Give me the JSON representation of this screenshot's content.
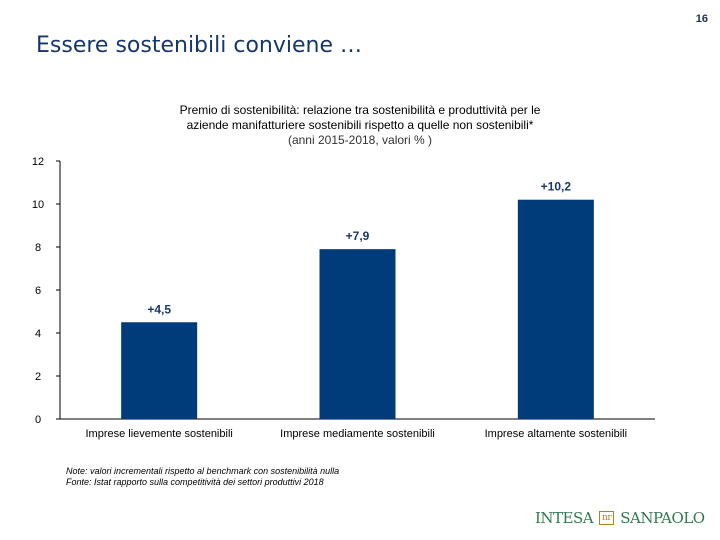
{
  "page": {
    "number": "16",
    "title": "Essere sostenibili conviene …"
  },
  "chart_title": {
    "line1": "Premio di sostenibilità: relazione tra sostenibilità e produttività  per le",
    "line2": "aziende manifatturiere sostenibili rispetto a  quelle non sostenibili*",
    "line3": "(anni 2015-2018, valori % )"
  },
  "chart_data": {
    "type": "bar",
    "title": "Premio di sostenibilità: relazione tra sostenibilità e produttività per le aziende manifatturiere sostenibili rispetto a quelle non sostenibili*",
    "subtitle": "(anni 2015-2018, valori % )",
    "categories": [
      "Imprese lievemente sostenibili",
      "Imprese mediamente sostenibili",
      "Imprese altamente sostenibili"
    ],
    "values": [
      4.5,
      7.9,
      10.2
    ],
    "data_labels": [
      "+4,5",
      "+7,9",
      "+10,2"
    ],
    "yticks": [
      "0",
      "2",
      "4",
      "6",
      "8",
      "10",
      "12"
    ],
    "ylim": [
      0,
      12
    ],
    "xlabel": "",
    "ylabel": "",
    "bar_color": "#003b7a",
    "grid": false
  },
  "notes": {
    "line1": "Note: valori incrementali rispetto al benchmark con sostenibilità nulla",
    "line2": "Fonte: Istat rapporto sulla competitività dei settori produttivi 2018"
  },
  "logo": {
    "left": "INTESA",
    "mark": "nr",
    "right": "SANPAOLO"
  }
}
